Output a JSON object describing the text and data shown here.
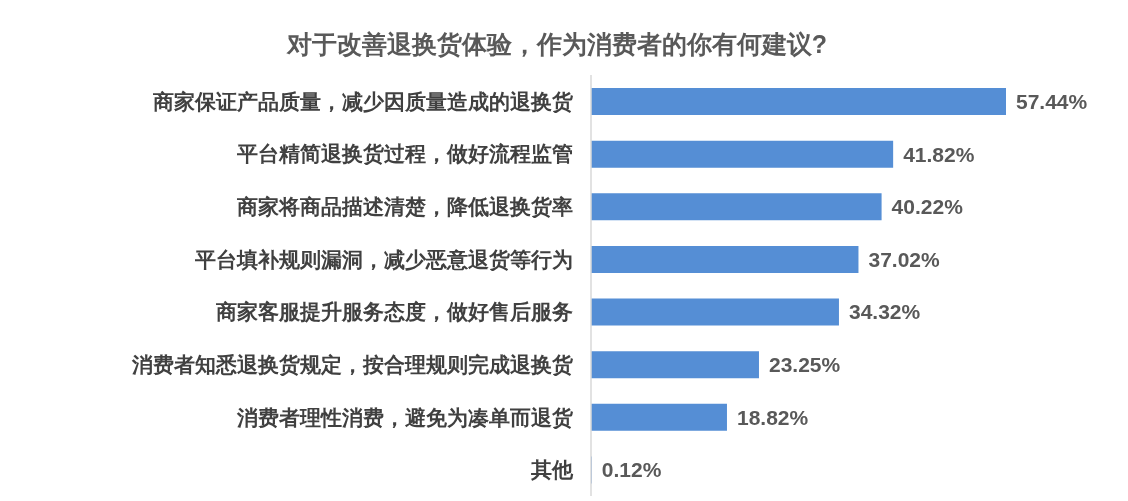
{
  "chart_data": {
    "type": "bar",
    "orientation": "horizontal",
    "title": "对于改善退换货体验，作为消费者的你有何建议?",
    "categories": [
      "商家保证产品质量，减少因质量造成的退换货",
      "平台精简退换货过程，做好流程监管",
      "商家将商品描述清楚，降低退换货率",
      "平台填补规则漏洞，减少恶意退货等行为",
      "商家客服提升服务态度，做好售后服务",
      "消费者知悉退换货规定，按合理规则完成退换货",
      "消费者理性消费，避免为凑单而退货",
      "其他"
    ],
    "values": [
      57.44,
      41.82,
      40.22,
      37.02,
      34.32,
      23.25,
      18.82,
      0.12
    ],
    "color": "#558ed5",
    "value_labels": [
      "57.44%",
      "41.82%",
      "40.22%",
      "37.02%",
      "34.32%",
      "23.25%",
      "18.82%",
      "0.12%"
    ]
  }
}
